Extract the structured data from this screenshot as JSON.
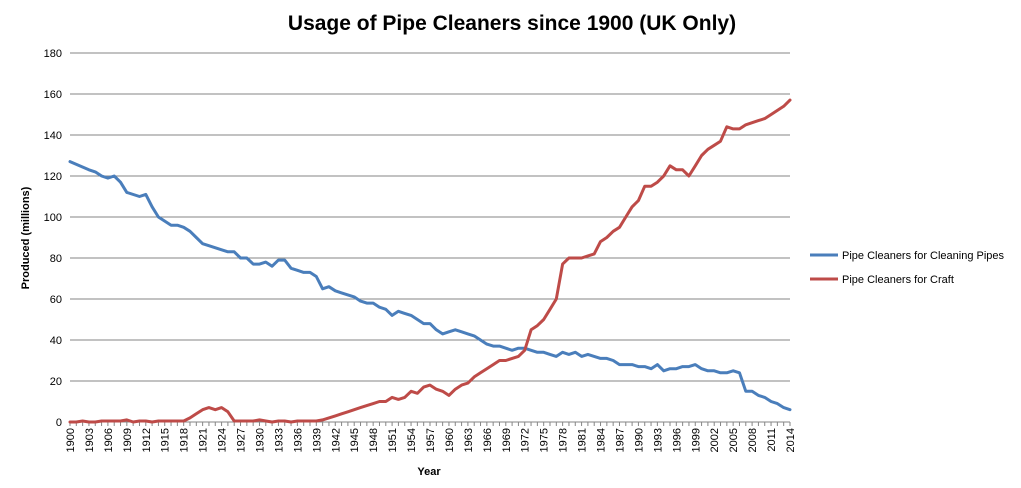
{
  "chart_data": {
    "type": "line",
    "title": "Usage of Pipe Cleaners since 1900 (UK Only)",
    "xlabel": "Year",
    "ylabel": "Produced (millions)",
    "ylim": [
      0,
      180
    ],
    "yticks": [
      0,
      20,
      40,
      60,
      80,
      100,
      120,
      140,
      160,
      180
    ],
    "xlim": [
      1900,
      2014
    ],
    "xticks": [
      "1900",
      "1903",
      "1906",
      "1909",
      "1912",
      "1915",
      "1918",
      "1921",
      "1924",
      "1927",
      "1930",
      "1933",
      "1936",
      "1939",
      "1942",
      "1945",
      "1948",
      "1951",
      "1954",
      "1957",
      "1960",
      "1963",
      "1966",
      "1969",
      "1972",
      "1975",
      "1978",
      "1981",
      "1984",
      "1987",
      "1990",
      "1993",
      "1996",
      "1999",
      "2002",
      "2005",
      "2008",
      "2011",
      "2014"
    ],
    "grid": "horizontal",
    "legend_position": "right",
    "series": [
      {
        "name": "Pipe Cleaners for Cleaning Pipes",
        "color": "#4a7ebb",
        "points": [
          [
            1900,
            127
          ],
          [
            1903,
            123
          ],
          [
            1904,
            122
          ],
          [
            1905,
            120
          ],
          [
            1906,
            119
          ],
          [
            1907,
            120
          ],
          [
            1908,
            117
          ],
          [
            1909,
            112
          ],
          [
            1911,
            110
          ],
          [
            1912,
            111
          ],
          [
            1913,
            105
          ],
          [
            1914,
            100
          ],
          [
            1916,
            96
          ],
          [
            1917,
            96
          ],
          [
            1918,
            95
          ],
          [
            1919,
            93
          ],
          [
            1920,
            90
          ],
          [
            1921,
            87
          ],
          [
            1922,
            86
          ],
          [
            1924,
            84
          ],
          [
            1925,
            83
          ],
          [
            1926,
            83
          ],
          [
            1927,
            80
          ],
          [
            1928,
            80
          ],
          [
            1929,
            77
          ],
          [
            1930,
            77
          ],
          [
            1931,
            78
          ],
          [
            1932,
            76
          ],
          [
            1933,
            79
          ],
          [
            1934,
            79
          ],
          [
            1935,
            75
          ],
          [
            1936,
            74
          ],
          [
            1937,
            73
          ],
          [
            1938,
            73
          ],
          [
            1939,
            71
          ],
          [
            1940,
            65
          ],
          [
            1941,
            66
          ],
          [
            1942,
            64
          ],
          [
            1943,
            63
          ],
          [
            1944,
            62
          ],
          [
            1945,
            61
          ],
          [
            1946,
            59
          ],
          [
            1947,
            58
          ],
          [
            1948,
            58
          ],
          [
            1949,
            56
          ],
          [
            1950,
            55
          ],
          [
            1951,
            52
          ],
          [
            1952,
            54
          ],
          [
            1953,
            53
          ],
          [
            1954,
            52
          ],
          [
            1955,
            50
          ],
          [
            1956,
            48
          ],
          [
            1957,
            48
          ],
          [
            1958,
            45
          ],
          [
            1959,
            43
          ],
          [
            1960,
            44
          ],
          [
            1961,
            45
          ],
          [
            1962,
            44
          ],
          [
            1963,
            43
          ],
          [
            1964,
            42
          ],
          [
            1965,
            40
          ],
          [
            1966,
            38
          ],
          [
            1967,
            37
          ],
          [
            1968,
            37
          ],
          [
            1969,
            36
          ],
          [
            1970,
            35
          ],
          [
            1971,
            36
          ],
          [
            1972,
            36
          ],
          [
            1973,
            35
          ],
          [
            1974,
            34
          ],
          [
            1975,
            34
          ],
          [
            1976,
            33
          ],
          [
            1977,
            32
          ],
          [
            1978,
            34
          ],
          [
            1979,
            33
          ],
          [
            1980,
            34
          ],
          [
            1981,
            32
          ],
          [
            1982,
            33
          ],
          [
            1983,
            32
          ],
          [
            1984,
            31
          ],
          [
            1985,
            31
          ],
          [
            1986,
            30
          ],
          [
            1987,
            28
          ],
          [
            1988,
            28
          ],
          [
            1989,
            28
          ],
          [
            1990,
            27
          ],
          [
            1991,
            27
          ],
          [
            1992,
            26
          ],
          [
            1993,
            28
          ],
          [
            1994,
            25
          ],
          [
            1995,
            26
          ],
          [
            1996,
            26
          ],
          [
            1997,
            27
          ],
          [
            1998,
            27
          ],
          [
            1999,
            28
          ],
          [
            2000,
            26
          ],
          [
            2001,
            25
          ],
          [
            2002,
            25
          ],
          [
            2003,
            24
          ],
          [
            2004,
            24
          ],
          [
            2005,
            25
          ],
          [
            2006,
            24
          ],
          [
            2007,
            15
          ],
          [
            2008,
            15
          ],
          [
            2009,
            13
          ],
          [
            2010,
            12
          ],
          [
            2011,
            10
          ],
          [
            2012,
            9
          ],
          [
            2013,
            7
          ],
          [
            2014,
            6
          ]
        ]
      },
      {
        "name": "Pipe Cleaners for Craft",
        "color": "#be4b48",
        "points": [
          [
            1900,
            0
          ],
          [
            1901,
            0
          ],
          [
            1902,
            0.5
          ],
          [
            1903,
            0
          ],
          [
            1904,
            0
          ],
          [
            1905,
            0.5
          ],
          [
            1906,
            0.5
          ],
          [
            1907,
            0.5
          ],
          [
            1908,
            0.5
          ],
          [
            1909,
            1
          ],
          [
            1910,
            0
          ],
          [
            1911,
            0.5
          ],
          [
            1912,
            0.5
          ],
          [
            1913,
            0
          ],
          [
            1914,
            0.5
          ],
          [
            1915,
            0.5
          ],
          [
            1916,
            0.5
          ],
          [
            1917,
            0.5
          ],
          [
            1918,
            0.5
          ],
          [
            1919,
            2
          ],
          [
            1920,
            4
          ],
          [
            1921,
            6
          ],
          [
            1922,
            7
          ],
          [
            1923,
            6
          ],
          [
            1924,
            7
          ],
          [
            1925,
            5
          ],
          [
            1926,
            0.5
          ],
          [
            1927,
            0.5
          ],
          [
            1928,
            0.5
          ],
          [
            1929,
            0.5
          ],
          [
            1930,
            1
          ],
          [
            1931,
            0.5
          ],
          [
            1932,
            0
          ],
          [
            1933,
            0.5
          ],
          [
            1934,
            0.5
          ],
          [
            1935,
            0
          ],
          [
            1936,
            0.5
          ],
          [
            1937,
            0.5
          ],
          [
            1938,
            0.5
          ],
          [
            1939,
            0.5
          ],
          [
            1940,
            1
          ],
          [
            1941,
            2
          ],
          [
            1942,
            3
          ],
          [
            1943,
            4
          ],
          [
            1944,
            5
          ],
          [
            1945,
            6
          ],
          [
            1946,
            7
          ],
          [
            1947,
            8
          ],
          [
            1948,
            9
          ],
          [
            1949,
            10
          ],
          [
            1950,
            10
          ],
          [
            1951,
            12
          ],
          [
            1952,
            11
          ],
          [
            1953,
            12
          ],
          [
            1954,
            15
          ],
          [
            1955,
            14
          ],
          [
            1956,
            17
          ],
          [
            1957,
            18
          ],
          [
            1958,
            16
          ],
          [
            1959,
            15
          ],
          [
            1960,
            13
          ],
          [
            1961,
            16
          ],
          [
            1962,
            18
          ],
          [
            1963,
            19
          ],
          [
            1964,
            22
          ],
          [
            1965,
            24
          ],
          [
            1966,
            26
          ],
          [
            1967,
            28
          ],
          [
            1968,
            30
          ],
          [
            1969,
            30
          ],
          [
            1970,
            31
          ],
          [
            1971,
            32
          ],
          [
            1972,
            35
          ],
          [
            1973,
            45
          ],
          [
            1974,
            47
          ],
          [
            1975,
            50
          ],
          [
            1976,
            55
          ],
          [
            1977,
            60
          ],
          [
            1978,
            77
          ],
          [
            1979,
            80
          ],
          [
            1980,
            80
          ],
          [
            1981,
            80
          ],
          [
            1982,
            81
          ],
          [
            1983,
            82
          ],
          [
            1984,
            88
          ],
          [
            1985,
            90
          ],
          [
            1986,
            93
          ],
          [
            1987,
            95
          ],
          [
            1988,
            100
          ],
          [
            1989,
            105
          ],
          [
            1990,
            108
          ],
          [
            1991,
            115
          ],
          [
            1992,
            115
          ],
          [
            1993,
            117
          ],
          [
            1994,
            120
          ],
          [
            1995,
            125
          ],
          [
            1996,
            123
          ],
          [
            1997,
            123
          ],
          [
            1998,
            120
          ],
          [
            1999,
            125
          ],
          [
            2000,
            130
          ],
          [
            2001,
            133
          ],
          [
            2002,
            135
          ],
          [
            2003,
            137
          ],
          [
            2004,
            144
          ],
          [
            2005,
            143
          ],
          [
            2006,
            143
          ],
          [
            2007,
            145
          ],
          [
            2008,
            146
          ],
          [
            2009,
            147
          ],
          [
            2010,
            148
          ],
          [
            2011,
            150
          ],
          [
            2012,
            152
          ],
          [
            2013,
            154
          ],
          [
            2014,
            157
          ]
        ]
      }
    ]
  }
}
